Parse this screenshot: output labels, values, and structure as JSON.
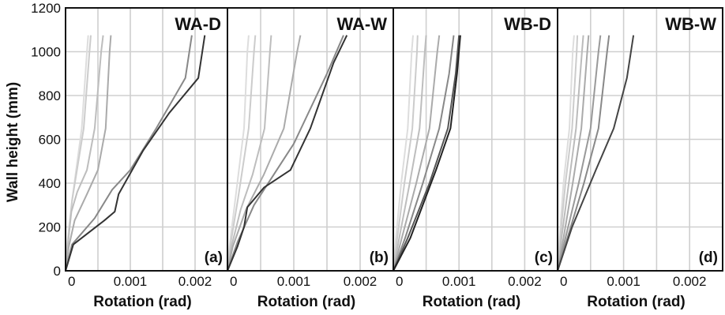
{
  "figure": {
    "ylabel": "Wall height (mm)"
  },
  "chart_data": [
    {
      "type": "line",
      "title": "WA-D",
      "panel_label": "(a)",
      "xlabel": "Rotation (rad)",
      "ylabel": "Wall height (mm)",
      "xlim": [
        0,
        0.0025
      ],
      "ylim": [
        0,
        1200
      ],
      "xticks": [
        0,
        0.001,
        0.002
      ],
      "xtick_labels": [
        "0",
        "0.001",
        "0.002"
      ],
      "yticks": [
        0,
        200,
        400,
        600,
        800,
        1000,
        1200
      ],
      "ytick_labels": [
        "0",
        "200",
        "400",
        "600",
        "800",
        "1000",
        "1200"
      ],
      "grid": true,
      "series": [
        {
          "color": "#dddddd",
          "points": [
            [
              0,
              0
            ],
            [
              2e-05,
              110
            ],
            [
              0.0001,
              320
            ],
            [
              0.00025,
              650
            ],
            [
              0.00033,
              1000
            ],
            [
              0.00035,
              1075
            ]
          ]
        },
        {
          "color": "#cccccc",
          "points": [
            [
              0,
              0
            ],
            [
              3e-05,
              100
            ],
            [
              0.0001,
              320
            ],
            [
              0.00028,
              650
            ],
            [
              0.00037,
              1000
            ],
            [
              0.00039,
              1075
            ]
          ]
        },
        {
          "color": "#bdbdbd",
          "points": [
            [
              0,
              0
            ],
            [
              3e-05,
              110
            ],
            [
              9e-05,
              270
            ],
            [
              0.00018,
              360
            ],
            [
              0.00033,
              460
            ],
            [
              0.00045,
              650
            ],
            [
              0.00055,
              1000
            ],
            [
              0.00058,
              1075
            ]
          ]
        },
        {
          "color": "#aaaaaa",
          "points": [
            [
              0,
              0
            ],
            [
              5e-05,
              110
            ],
            [
              0.00014,
              230
            ],
            [
              0.00033,
              350
            ],
            [
              0.0005,
              460
            ],
            [
              0.00062,
              650
            ],
            [
              0.00068,
              1000
            ],
            [
              0.0007,
              1075
            ]
          ]
        },
        {
          "color": "#888888",
          "points": [
            [
              0,
              0
            ],
            [
              0.0001,
              120
            ],
            [
              0.00045,
              240
            ],
            [
              0.00072,
              370
            ],
            [
              0.001,
              460
            ],
            [
              0.0014,
              650
            ],
            [
              0.00185,
              880
            ],
            [
              0.00195,
              1075
            ]
          ]
        },
        {
          "color": "#333333",
          "points": [
            [
              0,
              0
            ],
            [
              0.00012,
              120
            ],
            [
              0.0006,
              230
            ],
            [
              0.00076,
              270
            ],
            [
              0.00082,
              350
            ],
            [
              0.0012,
              550
            ],
            [
              0.0016,
              720
            ],
            [
              0.00205,
              880
            ],
            [
              0.00215,
              1075
            ]
          ]
        }
      ]
    },
    {
      "type": "line",
      "title": "WA-W",
      "panel_label": "(b)",
      "xlabel": "Rotation (rad)",
      "ylabel": "",
      "xlim": [
        0,
        0.0025
      ],
      "ylim": [
        0,
        1200
      ],
      "xticks": [
        0,
        0.001,
        0.002
      ],
      "xtick_labels": [
        "0",
        "0.001",
        "0.002"
      ],
      "yticks": [
        0,
        200,
        400,
        600,
        800,
        1000,
        1200
      ],
      "ytick_labels": [],
      "grid": true,
      "series": [
        {
          "color": "#dddddd",
          "points": [
            [
              0,
              0
            ],
            [
              3e-05,
              110
            ],
            [
              0.00012,
              330
            ],
            [
              0.00025,
              650
            ],
            [
              0.0003,
              1000
            ],
            [
              0.00032,
              1075
            ]
          ]
        },
        {
          "color": "#cccccc",
          "points": [
            [
              0,
              0
            ],
            [
              4e-05,
              110
            ],
            [
              0.00016,
              330
            ],
            [
              0.00032,
              650
            ],
            [
              0.0004,
              1000
            ],
            [
              0.00042,
              1075
            ]
          ]
        },
        {
          "color": "#bdbdbd",
          "points": [
            [
              0,
              0
            ],
            [
              6e-05,
              110
            ],
            [
              0.0002,
              280
            ],
            [
              0.00038,
              440
            ],
            [
              0.00056,
              650
            ],
            [
              0.00064,
              1000
            ],
            [
              0.00066,
              1075
            ]
          ]
        },
        {
          "color": "#aaaaaa",
          "points": [
            [
              0,
              0
            ],
            [
              8e-05,
              110
            ],
            [
              0.00028,
              280
            ],
            [
              0.00055,
              440
            ],
            [
              0.00085,
              650
            ],
            [
              0.00105,
              1000
            ],
            [
              0.0011,
              1075
            ]
          ]
        },
        {
          "color": "#888888",
          "points": [
            [
              0,
              0
            ],
            [
              0.00015,
              130
            ],
            [
              0.0004,
              300
            ],
            [
              0.0007,
              440
            ],
            [
              0.001,
              580
            ],
            [
              0.0015,
              900
            ],
            [
              0.00175,
              1075
            ]
          ]
        },
        {
          "color": "#333333",
          "points": [
            [
              0,
              0
            ],
            [
              0.00015,
              110
            ],
            [
              0.00025,
              200
            ],
            [
              0.0003,
              290
            ],
            [
              0.00055,
              380
            ],
            [
              0.00095,
              460
            ],
            [
              0.00125,
              650
            ],
            [
              0.0016,
              950
            ],
            [
              0.0018,
              1075
            ]
          ]
        }
      ]
    },
    {
      "type": "line",
      "title": "WB-D",
      "panel_label": "(c)",
      "xlabel": "Rotation (rad)",
      "ylabel": "",
      "xlim": [
        0,
        0.0025
      ],
      "ylim": [
        0,
        1200
      ],
      "xticks": [
        0,
        0.001,
        0.002
      ],
      "xtick_labels": [
        "0",
        "0.001",
        "0.002"
      ],
      "yticks": [
        0,
        200,
        400,
        600,
        800,
        1000,
        1200
      ],
      "ytick_labels": [],
      "grid": true,
      "series": [
        {
          "color": "#dddddd",
          "points": [
            [
              0,
              0
            ],
            [
              4e-05,
              150
            ],
            [
              0.00012,
              400
            ],
            [
              0.00022,
              650
            ],
            [
              0.00028,
              1000
            ],
            [
              0.0003,
              1075
            ]
          ]
        },
        {
          "color": "#cccccc",
          "points": [
            [
              0,
              0
            ],
            [
              6e-05,
              150
            ],
            [
              0.00017,
              400
            ],
            [
              0.00029,
              650
            ],
            [
              0.00036,
              1000
            ],
            [
              0.00037,
              1075
            ]
          ]
        },
        {
          "color": "#bdbdbd",
          "points": [
            [
              0,
              0
            ],
            [
              9e-05,
              150
            ],
            [
              0.00025,
              400
            ],
            [
              0.0004,
              650
            ],
            [
              0.00048,
              1000
            ],
            [
              0.0005,
              1075
            ]
          ]
        },
        {
          "color": "#aaaaaa",
          "points": [
            [
              0,
              0
            ],
            [
              0.00013,
              150
            ],
            [
              0.00035,
              400
            ],
            [
              0.00055,
              650
            ],
            [
              0.00067,
              1000
            ],
            [
              0.0007,
              1075
            ]
          ]
        },
        {
          "color": "#888888",
          "points": [
            [
              0,
              0
            ],
            [
              0.00018,
              150
            ],
            [
              0.00045,
              400
            ],
            [
              0.0007,
              650
            ],
            [
              0.00085,
              900
            ],
            [
              0.00092,
              1075
            ]
          ]
        },
        {
          "color": "#555555",
          "points": [
            [
              0,
              0
            ],
            [
              0.00022,
              150
            ],
            [
              0.00055,
              400
            ],
            [
              0.00083,
              650
            ],
            [
              0.00095,
              900
            ],
            [
              0.001,
              1075
            ]
          ]
        },
        {
          "color": "#222222",
          "points": [
            [
              0,
              0
            ],
            [
              0.00026,
              150
            ],
            [
              0.00065,
              460
            ],
            [
              0.00087,
              650
            ],
            [
              0.00097,
              900
            ],
            [
              0.00102,
              1075
            ]
          ]
        }
      ]
    },
    {
      "type": "line",
      "title": "WB-W",
      "panel_label": "(d)",
      "xlabel": "Rotation (rad)",
      "ylabel": "",
      "xlim": [
        0,
        0.0025
      ],
      "ylim": [
        0,
        1200
      ],
      "xticks": [
        0,
        0.001,
        0.002
      ],
      "xtick_labels": [
        "0",
        "0.001",
        "0.002"
      ],
      "yticks": [
        0,
        200,
        400,
        600,
        800,
        1000,
        1200
      ],
      "ytick_labels": [],
      "grid": true,
      "series": [
        {
          "color": "#dddddd",
          "points": [
            [
              0,
              0
            ],
            [
              3e-05,
              150
            ],
            [
              9e-05,
              400
            ],
            [
              0.00018,
              650
            ],
            [
              0.00023,
              1000
            ],
            [
              0.00025,
              1075
            ]
          ]
        },
        {
          "color": "#cccccc",
          "points": [
            [
              0,
              0
            ],
            [
              4e-05,
              150
            ],
            [
              0.00012,
              400
            ],
            [
              0.00022,
              650
            ],
            [
              0.00029,
              1000
            ],
            [
              0.0003,
              1075
            ]
          ]
        },
        {
          "color": "#bbbbbb",
          "points": [
            [
              0,
              0
            ],
            [
              6e-05,
              150
            ],
            [
              0.00017,
              400
            ],
            [
              0.00028,
              650
            ],
            [
              0.00037,
              1000
            ],
            [
              0.00039,
              1075
            ]
          ]
        },
        {
          "color": "#aaaaaa",
          "points": [
            [
              0,
              0
            ],
            [
              9e-05,
              150
            ],
            [
              0.00023,
              400
            ],
            [
              0.00036,
              650
            ],
            [
              0.00045,
              1000
            ],
            [
              0.00047,
              1075
            ]
          ]
        },
        {
          "color": "#999999",
          "points": [
            [
              0,
              0
            ],
            [
              0.00012,
              150
            ],
            [
              0.00032,
              400
            ],
            [
              0.0005,
              650
            ],
            [
              0.00062,
              1000
            ],
            [
              0.00065,
              1075
            ]
          ]
        },
        {
          "color": "#888888",
          "points": [
            [
              0,
              0
            ],
            [
              0.00015,
              150
            ],
            [
              0.0004,
              400
            ],
            [
              0.00062,
              650
            ],
            [
              0.00075,
              1000
            ],
            [
              0.00078,
              1075
            ]
          ]
        },
        {
          "color": "#444444",
          "points": [
            [
              0,
              0
            ],
            [
              0.00022,
              200
            ],
            [
              0.00058,
              460
            ],
            [
              0.00085,
              650
            ],
            [
              0.00105,
              880
            ],
            [
              0.00115,
              1075
            ]
          ]
        }
      ]
    }
  ]
}
